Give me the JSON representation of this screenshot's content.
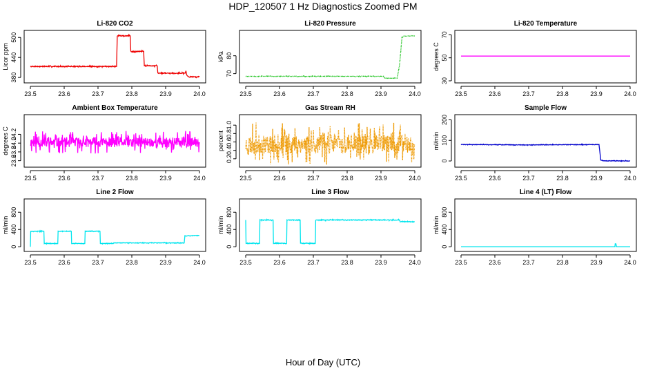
{
  "figure": {
    "title": "HDP_120507  1 Hz Diagnostics Zoomed PM",
    "xlabel": "Hour of Day (UTC)"
  },
  "chart_data": [
    {
      "type": "line",
      "title": "Li-820 CO2",
      "ylabel": "Licor ppm",
      "xlim": [
        23.5,
        24.0
      ],
      "ylim": [
        370,
        515
      ],
      "xticks": [
        "23.5",
        "23.6",
        "23.7",
        "23.8",
        "23.9",
        "24.0"
      ],
      "yticks": [
        {
          "v": 380,
          "label": "380"
        },
        {
          "v": 440,
          "label": "440"
        },
        {
          "v": 500,
          "label": "500"
        }
      ],
      "color": "#ee0000",
      "style": "solid",
      "noise": 1.5,
      "series": [
        {
          "name": "CO2",
          "x": [
            23.5,
            23.755,
            23.757,
            23.795,
            23.797,
            23.835,
            23.837,
            23.875,
            23.877,
            23.958,
            23.96,
            23.962,
            23.964,
            23.968,
            24.0
          ],
          "y": [
            413,
            413,
            505,
            505,
            458,
            458,
            415,
            415,
            393,
            393,
            400,
            388,
            385,
            382,
            382
          ]
        }
      ]
    },
    {
      "type": "line",
      "title": "Li-820 Pressure",
      "ylabel": "kPa",
      "xlim": [
        23.5,
        24.0
      ],
      "ylim": [
        66,
        93
      ],
      "xticks": [
        "23.5",
        "23.6",
        "23.7",
        "23.8",
        "23.9",
        "24.0"
      ],
      "yticks": [
        {
          "v": 70,
          "label": "70"
        },
        {
          "v": 80,
          "label": "80"
        }
      ],
      "color": "#00bb00",
      "style": "dotted",
      "noise": 0.15,
      "series": [
        {
          "name": "Pressure",
          "x": [
            23.5,
            23.908,
            23.91,
            23.948,
            23.955,
            23.962,
            23.968,
            24.0
          ],
          "y": [
            68.5,
            68.5,
            67.5,
            67.5,
            75,
            90,
            91,
            91
          ]
        }
      ]
    },
    {
      "type": "line",
      "title": "Li-820 Temperature",
      "ylabel": "degrees C",
      "xlim": [
        23.5,
        24.0
      ],
      "ylim": [
        30,
        72
      ],
      "xticks": [
        "23.5",
        "23.6",
        "23.7",
        "23.8",
        "23.9",
        "24.0"
      ],
      "yticks": [
        {
          "v": 30,
          "label": "30"
        },
        {
          "v": 50,
          "label": "50"
        },
        {
          "v": 70,
          "label": "70"
        }
      ],
      "color": "#ff00ff",
      "style": "solid",
      "noise": 0,
      "series": [
        {
          "name": "Temperature",
          "x": [
            23.5,
            24.0
          ],
          "y": [
            51.5,
            51.5
          ]
        }
      ]
    },
    {
      "type": "line",
      "title": "Ambient Box Temperature",
      "ylabel": "degrees C",
      "xlim": [
        23.5,
        24.0
      ],
      "ylim": [
        23.5,
        24.6
      ],
      "xticks": [
        "23.5",
        "23.6",
        "23.7",
        "23.8",
        "23.9",
        "24.0"
      ],
      "yticks": [
        {
          "v": 23.6,
          "label": "23.6"
        },
        {
          "v": 23.8,
          "label": "23.8"
        },
        {
          "v": 24.0,
          "label": "24.0"
        },
        {
          "v": 24.2,
          "label": "24.2"
        }
      ],
      "color": "#ff00ff",
      "style": "solid",
      "noise": 0.16,
      "noiseSeed": 11,
      "series": [
        {
          "name": "Box Temperature",
          "x": [
            23.5,
            24.0
          ],
          "y": [
            24.02,
            24.02
          ]
        }
      ]
    },
    {
      "type": "line",
      "title": "Gas Stream RH",
      "ylabel": "percent",
      "xlim": [
        23.5,
        24.0
      ],
      "ylim": [
        0.05,
        1.2
      ],
      "xticks": [
        "23.5",
        "23.6",
        "23.7",
        "23.8",
        "23.9",
        "24.0"
      ],
      "yticks": [
        {
          "v": 0.2,
          "label": "0.2"
        },
        {
          "v": 0.4,
          "label": "0.4"
        },
        {
          "v": 0.6,
          "label": "0.6"
        },
        {
          "v": 0.8,
          "label": "0.8"
        },
        {
          "v": 1.0,
          "label": "1.0"
        }
      ],
      "color": "#ee9900",
      "style": "dotted",
      "noise": 0.32,
      "noiseSeed": 23,
      "series": [
        {
          "name": "RH",
          "x": [
            23.5,
            24.0
          ],
          "y": [
            0.55,
            0.55
          ]
        }
      ]
    },
    {
      "type": "line",
      "title": "Sample Flow",
      "ylabel": "ml/min",
      "xlim": [
        23.5,
        24.0
      ],
      "ylim": [
        -20,
        215
      ],
      "xticks": [
        "23.5",
        "23.6",
        "23.7",
        "23.8",
        "23.9",
        "24.0"
      ],
      "yticks": [
        {
          "v": 0,
          "label": "0"
        },
        {
          "v": 100,
          "label": "100"
        },
        {
          "v": 200,
          "label": "200"
        }
      ],
      "color": "#0000cc",
      "style": "solid",
      "noise": 1.5,
      "series": [
        {
          "name": "Sample Flow",
          "x": [
            23.5,
            23.6,
            23.7,
            23.8,
            23.908,
            23.913,
            23.92,
            24.0
          ],
          "y": [
            80,
            79,
            78,
            79,
            80,
            5,
            1,
            0
          ]
        }
      ]
    },
    {
      "type": "line",
      "title": "Line 2 Flow",
      "ylabel": "ml/min",
      "xlim": [
        23.5,
        24.0
      ],
      "ylim": [
        -60,
        1060
      ],
      "xticks": [
        "23.5",
        "23.6",
        "23.7",
        "23.8",
        "23.9",
        "24.0"
      ],
      "yticks": [
        {
          "v": 0,
          "label": "0"
        },
        {
          "v": 400,
          "label": "400"
        },
        {
          "v": 800,
          "label": "800"
        }
      ],
      "color": "#00e5ee",
      "style": "solid",
      "noise": 8,
      "series": [
        {
          "name": "Line 2",
          "x": [
            23.5,
            23.501,
            23.54,
            23.541,
            23.581,
            23.582,
            23.621,
            23.622,
            23.661,
            23.662,
            23.706,
            23.707,
            23.745,
            23.747,
            23.955,
            23.957,
            24.0
          ],
          "y": [
            0,
            360,
            360,
            75,
            75,
            360,
            360,
            75,
            75,
            360,
            360,
            75,
            75,
            90,
            90,
            250,
            260
          ]
        }
      ]
    },
    {
      "type": "line",
      "title": "Line 3 Flow",
      "ylabel": "ml/min",
      "xlim": [
        23.5,
        24.0
      ],
      "ylim": [
        -60,
        1060
      ],
      "xticks": [
        "23.5",
        "23.6",
        "23.7",
        "23.8",
        "23.9",
        "24.0"
      ],
      "yticks": [
        {
          "v": 0,
          "label": "0"
        },
        {
          "v": 400,
          "label": "400"
        },
        {
          "v": 800,
          "label": "800"
        }
      ],
      "color": "#00e5ee",
      "style": "solid",
      "noise": 10,
      "series": [
        {
          "name": "Line 3",
          "x": [
            23.5,
            23.501,
            23.541,
            23.542,
            23.581,
            23.582,
            23.621,
            23.622,
            23.661,
            23.662,
            23.706,
            23.707,
            23.955,
            23.957,
            24.0
          ],
          "y": [
            620,
            80,
            80,
            620,
            620,
            80,
            80,
            620,
            620,
            80,
            80,
            620,
            620,
            580,
            580
          ]
        }
      ]
    },
    {
      "type": "line",
      "title": "Line 4 (LT) Flow",
      "ylabel": "ml/min",
      "xlim": [
        23.5,
        24.0
      ],
      "ylim": [
        -60,
        1060
      ],
      "xticks": [
        "23.5",
        "23.6",
        "23.7",
        "23.8",
        "23.9",
        "24.0"
      ],
      "yticks": [
        {
          "v": 0,
          "label": "0"
        },
        {
          "v": 400,
          "label": "400"
        },
        {
          "v": 800,
          "label": "800"
        }
      ],
      "color": "#00e5ee",
      "style": "solid",
      "noise": 0,
      "series": [
        {
          "name": "Line 4",
          "x": [
            23.5,
            23.955,
            23.956,
            23.958,
            23.96,
            24.0
          ],
          "y": [
            0,
            0,
            70,
            70,
            0,
            0
          ]
        }
      ]
    }
  ]
}
